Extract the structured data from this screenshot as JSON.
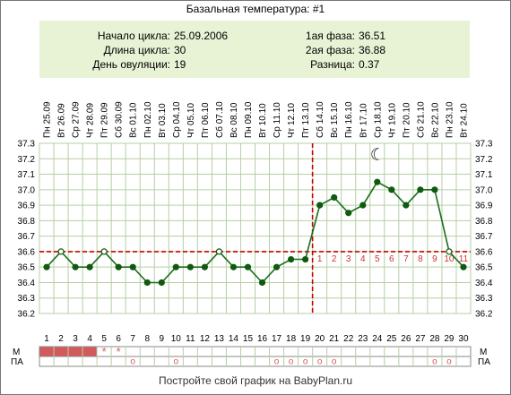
{
  "title": "Базальная температура: #1",
  "info": {
    "cycle_start_label": "Начало цикла:",
    "cycle_start_value": "25.09.2006",
    "cycle_length_label": "Длина цикла:",
    "cycle_length_value": "30",
    "ovulation_day_label": "День овуляции:",
    "ovulation_day_value": "19",
    "phase1_label": "1ая фаза:",
    "phase1_value": "36.51",
    "phase2_label": "2ая фаза:",
    "phase2_value": "36.88",
    "difference_label": "Разница:",
    "difference_value": "0.37"
  },
  "footer": "Постройте свой график на BabyPlan.ru",
  "row_labels": {
    "m": "М",
    "pa": "ПА"
  },
  "colors": {
    "line": "#1a6e1a",
    "marker": "#0e5a0e",
    "dashed": "#cc0000",
    "grid": "#b6cfa6",
    "info_bg": "#e8f3d6",
    "menses": "#d35a5a",
    "phase_number": "#cc3333"
  },
  "chart_data": {
    "type": "line",
    "days": [
      1,
      2,
      3,
      4,
      5,
      6,
      7,
      8,
      9,
      10,
      11,
      12,
      13,
      14,
      15,
      16,
      17,
      18,
      19,
      20,
      21,
      22,
      23,
      24,
      25,
      26,
      27,
      28,
      29,
      30
    ],
    "dates": [
      "Пн 25.09",
      "Вт 26.09",
      "Ср 27.09",
      "Чт 28.09",
      "Пт 29.09",
      "Сб 30.09",
      "Вс 01.10",
      "Пн 02.10",
      "Вт 03.10",
      "Ср 04.10",
      "Чт 05.10",
      "Пт 06.10",
      "Сб 07.10",
      "Вс 08.10",
      "Пн 09.10",
      "Вт 10.10",
      "Ср 11.10",
      "Чт 12.10",
      "Пт 13.10",
      "Сб 14.10",
      "Вс 15.10",
      "Пн 16.10",
      "Вт 17.10",
      "Ср 18.10",
      "Чт 19.10",
      "Пт 20.10",
      "Сб 21.10",
      "Вс 22.10",
      "Пн 23.10",
      "Вт 24.10"
    ],
    "temperatures": [
      36.5,
      36.6,
      36.5,
      36.5,
      36.6,
      36.5,
      36.5,
      36.4,
      36.4,
      36.5,
      36.5,
      36.5,
      36.6,
      36.5,
      36.5,
      36.4,
      36.5,
      36.55,
      36.55,
      36.9,
      36.95,
      36.85,
      36.9,
      37.05,
      37.0,
      36.9,
      37.0,
      37.0,
      36.6,
      36.5
    ],
    "hollow_points": [
      2,
      5,
      13,
      29
    ],
    "y_ticks": [
      "36.2",
      "36.3",
      "36.4",
      "36.5",
      "36.6",
      "36.7",
      "36.8",
      "36.9",
      "37.0",
      "37.1",
      "37.2",
      "37.3"
    ],
    "ylim": [
      36.2,
      37.3
    ],
    "baseline_temperature": 36.6,
    "ovulation_day": 19,
    "phase2_day_labels": [
      "1",
      "2",
      "3",
      "4",
      "5",
      "6",
      "7",
      "8",
      "9",
      "10",
      "11"
    ],
    "moon_symbol": "☾",
    "moon_day": 24,
    "menses_days": [
      1,
      2,
      3,
      4
    ],
    "menses_star_days": [
      5,
      6
    ],
    "star_symbol": "*",
    "pa_days": [
      7,
      10,
      17,
      18,
      19,
      20,
      21,
      28,
      29
    ],
    "pa_symbol": "o"
  }
}
